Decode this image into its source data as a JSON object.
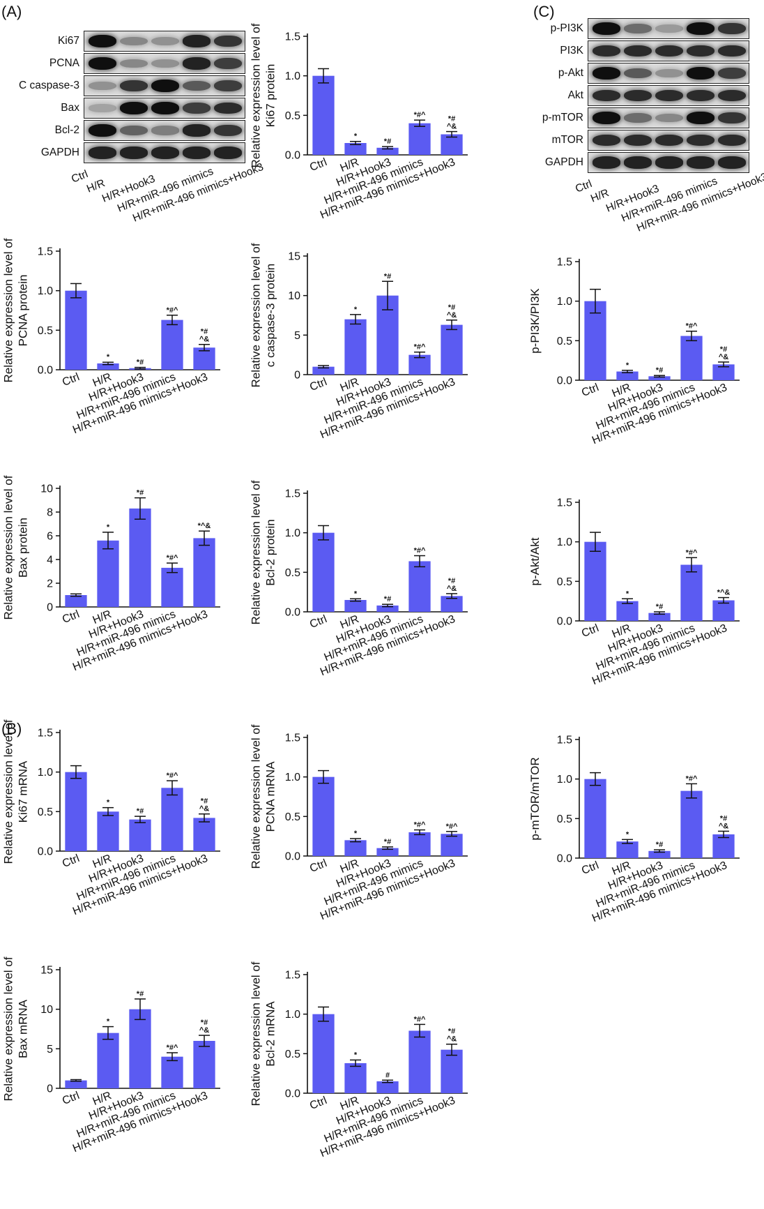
{
  "panel_labels": {
    "a": "(A)",
    "b": "(B)",
    "c": "(C)"
  },
  "colors": {
    "bar": "#5b5bf2",
    "axis": "#111111"
  },
  "blot_a": {
    "rows": [
      "Ki67",
      "PCNA",
      "C caspase-3",
      "Bax",
      "Bcl-2",
      "GAPDH"
    ],
    "groups": [
      "Ctrl",
      "H/R",
      "H/R+Hook3",
      "H/R+miR-496 mimics",
      "H/R+miR-496 mimics+Hook3"
    ]
  },
  "blot_c": {
    "rows": [
      "p-PI3K",
      "PI3K",
      "p-Akt",
      "Akt",
      "p-mTOR",
      "mTOR",
      "GAPDH"
    ],
    "groups": [
      "Ctrl",
      "H/R",
      "H/R+Hook3",
      "H/R+miR-496 mimics",
      "H/R+miR-496 mimics+Hook3"
    ]
  },
  "chart_data": [
    {
      "id": "ki67_protein",
      "type": "bar",
      "categories": [
        "Ctrl",
        "H/R",
        "H/R+Hook3",
        "H/R+miR-496 mimics",
        "H/R+miR-496 mimics+Hook3"
      ],
      "values": [
        1.0,
        0.15,
        0.09,
        0.4,
        0.26
      ],
      "errors": [
        0.09,
        0.02,
        0.015,
        0.04,
        0.035
      ],
      "marks": [
        "",
        "*",
        "*#",
        "*#^",
        "*#\n^&"
      ],
      "ylabel": [
        "Relative expression level of",
        "Ki67 protein"
      ],
      "ylim": [
        0,
        1.5
      ],
      "yticks": [
        "0.0",
        "0.5",
        "1.0",
        "1.5"
      ]
    },
    {
      "id": "pcna_protein",
      "type": "bar",
      "categories": [
        "Ctrl",
        "H/R",
        "H/R+Hook3",
        "H/R+miR-496 mimics",
        "H/R+miR-496 mimics+Hook3"
      ],
      "values": [
        1.0,
        0.08,
        0.02,
        0.63,
        0.28
      ],
      "errors": [
        0.09,
        0.015,
        0.01,
        0.06,
        0.04
      ],
      "marks": [
        "",
        "*",
        "*#",
        "*#^",
        "*#\n^&"
      ],
      "ylabel": [
        "Relative expression level of",
        "PCNA protein"
      ],
      "ylim": [
        0,
        1.5
      ],
      "yticks": [
        "0.0",
        "0.5",
        "1.0",
        "1.5"
      ]
    },
    {
      "id": "ccasp3_protein",
      "type": "bar",
      "categories": [
        "Ctrl",
        "H/R",
        "H/R+Hook3",
        "H/R+miR-496 mimics",
        "H/R+miR-496 mimics+Hook3"
      ],
      "values": [
        1.0,
        7.0,
        10.0,
        2.5,
        6.3
      ],
      "errors": [
        0.15,
        0.6,
        1.8,
        0.35,
        0.6
      ],
      "marks": [
        "",
        "*",
        "*#",
        "*#^",
        "*#\n^&"
      ],
      "ylabel": [
        "Relative expression level of",
        "c caspase-3 protein"
      ],
      "ylim": [
        0,
        15
      ],
      "yticks": [
        "0",
        "5",
        "10",
        "15"
      ]
    },
    {
      "id": "bax_protein",
      "type": "bar",
      "categories": [
        "Ctrl",
        "H/R",
        "H/R+Hook3",
        "H/R+miR-496 mimics",
        "H/R+miR-496 mimics+Hook3"
      ],
      "values": [
        1.0,
        5.6,
        8.3,
        3.3,
        5.8
      ],
      "errors": [
        0.1,
        0.7,
        0.9,
        0.4,
        0.6
      ],
      "marks": [
        "",
        "*",
        "*#",
        "*#^",
        "*^&"
      ],
      "ylabel": [
        "Relative expression level of",
        "Bax protein"
      ],
      "ylim": [
        0,
        10
      ],
      "yticks": [
        "0",
        "2",
        "4",
        "6",
        "8",
        "10"
      ]
    },
    {
      "id": "bcl2_protein",
      "type": "bar",
      "categories": [
        "Ctrl",
        "H/R",
        "H/R+Hook3",
        "H/R+miR-496 mimics",
        "H/R+miR-496 mimics+Hook3"
      ],
      "values": [
        1.0,
        0.15,
        0.08,
        0.64,
        0.2
      ],
      "errors": [
        0.09,
        0.015,
        0.015,
        0.07,
        0.03
      ],
      "marks": [
        "",
        "*",
        "*#",
        "*#^",
        "*#\n^&"
      ],
      "ylabel": [
        "Relative expression level of",
        "Bcl-2 protein"
      ],
      "ylim": [
        0,
        1.5
      ],
      "yticks": [
        "0.0",
        "0.5",
        "1.0",
        "1.5"
      ]
    },
    {
      "id": "ki67_mrna",
      "type": "bar",
      "categories": [
        "Ctrl",
        "H/R",
        "H/R+Hook3",
        "H/R+miR-496 mimics",
        "H/R+miR-496 mimics+Hook3"
      ],
      "values": [
        1.0,
        0.5,
        0.4,
        0.8,
        0.42
      ],
      "errors": [
        0.08,
        0.05,
        0.04,
        0.09,
        0.05
      ],
      "marks": [
        "",
        "*",
        "*#",
        "*#^",
        "*#\n^&"
      ],
      "ylabel": [
        "Relative expression level of",
        "Ki67 mRNA"
      ],
      "ylim": [
        0,
        1.5
      ],
      "yticks": [
        "0.0",
        "0.5",
        "1.0",
        "1.5"
      ]
    },
    {
      "id": "pcna_mrna",
      "type": "bar",
      "categories": [
        "Ctrl",
        "H/R",
        "H/R+Hook3",
        "H/R+miR-496 mimics",
        "H/R+miR-496 mimics+Hook3"
      ],
      "values": [
        1.0,
        0.2,
        0.1,
        0.3,
        0.28
      ],
      "errors": [
        0.08,
        0.02,
        0.015,
        0.03,
        0.03
      ],
      "marks": [
        "",
        "*",
        "*#",
        "*#^",
        "*#^"
      ],
      "ylabel": [
        "Relative expression level of",
        "PCNA mRNA"
      ],
      "ylim": [
        0,
        1.5
      ],
      "yticks": [
        "0.0",
        "0.5",
        "1.0",
        "1.5"
      ]
    },
    {
      "id": "bax_mrna",
      "type": "bar",
      "categories": [
        "Ctrl",
        "H/R",
        "H/R+Hook3",
        "H/R+miR-496 mimics",
        "H/R+miR-496 mimics+Hook3"
      ],
      "values": [
        1.0,
        7.0,
        10.0,
        4.0,
        6.0
      ],
      "errors": [
        0.1,
        0.8,
        1.3,
        0.5,
        0.7
      ],
      "marks": [
        "",
        "*",
        "*#",
        "*#^",
        "*#\n^&"
      ],
      "ylabel": [
        "Relative expression level of",
        "Bax mRNA"
      ],
      "ylim": [
        0,
        15
      ],
      "yticks": [
        "0",
        "5",
        "10",
        "15"
      ]
    },
    {
      "id": "bcl2_mrna",
      "type": "bar",
      "categories": [
        "Ctrl",
        "H/R",
        "H/R+Hook3",
        "H/R+miR-496 mimics",
        "H/R+miR-496 mimics+Hook3"
      ],
      "values": [
        1.0,
        0.38,
        0.15,
        0.79,
        0.55
      ],
      "errors": [
        0.09,
        0.04,
        0.015,
        0.08,
        0.07
      ],
      "marks": [
        "",
        "*",
        "#",
        "*#^",
        "*#\n^&"
      ],
      "ylabel": [
        "Relative expression level of",
        "Bcl-2 mRNA"
      ],
      "ylim": [
        0,
        1.5
      ],
      "yticks": [
        "0.0",
        "0.5",
        "1.0",
        "1.5"
      ]
    },
    {
      "id": "ppi3k_pi3k",
      "type": "bar",
      "categories": [
        "Ctrl",
        "H/R",
        "H/R+Hook3",
        "H/R+miR-496 mimics",
        "H/R+miR-496 mimics+Hook3"
      ],
      "values": [
        1.0,
        0.11,
        0.05,
        0.56,
        0.2
      ],
      "errors": [
        0.15,
        0.015,
        0.01,
        0.06,
        0.03
      ],
      "marks": [
        "",
        "*",
        "*#",
        "*#^",
        "*#\n^&"
      ],
      "ylabel": [
        "p-PI3K/PI3K"
      ],
      "ylim": [
        0,
        1.5
      ],
      "yticks": [
        "0.0",
        "0.5",
        "1.0",
        "1.5"
      ]
    },
    {
      "id": "pakt_akt",
      "type": "bar",
      "categories": [
        "Ctrl",
        "H/R",
        "H/R+Hook3",
        "H/R+miR-496 mimics",
        "H/R+miR-496 mimics+Hook3"
      ],
      "values": [
        1.0,
        0.25,
        0.1,
        0.71,
        0.26
      ],
      "errors": [
        0.12,
        0.03,
        0.015,
        0.09,
        0.035
      ],
      "marks": [
        "",
        "*",
        "*#",
        "*#^",
        "*^&"
      ],
      "ylabel": [
        "p-Akt/Akt"
      ],
      "ylim": [
        0,
        1.5
      ],
      "yticks": [
        "0.0",
        "0.5",
        "1.0",
        "1.5"
      ]
    },
    {
      "id": "pmtor_mtor",
      "type": "bar",
      "categories": [
        "Ctrl",
        "H/R",
        "H/R+Hook3",
        "H/R+miR-496 mimics",
        "H/R+miR-496 mimics+Hook3"
      ],
      "values": [
        1.0,
        0.21,
        0.09,
        0.85,
        0.3
      ],
      "errors": [
        0.08,
        0.025,
        0.015,
        0.09,
        0.04
      ],
      "marks": [
        "",
        "*",
        "*#",
        "*#^",
        "*#\n^&"
      ],
      "ylabel": [
        "p-mTOR/mTOR"
      ],
      "ylim": [
        0,
        1.5
      ],
      "yticks": [
        "0.0",
        "0.5",
        "1.0",
        "1.5"
      ]
    }
  ]
}
